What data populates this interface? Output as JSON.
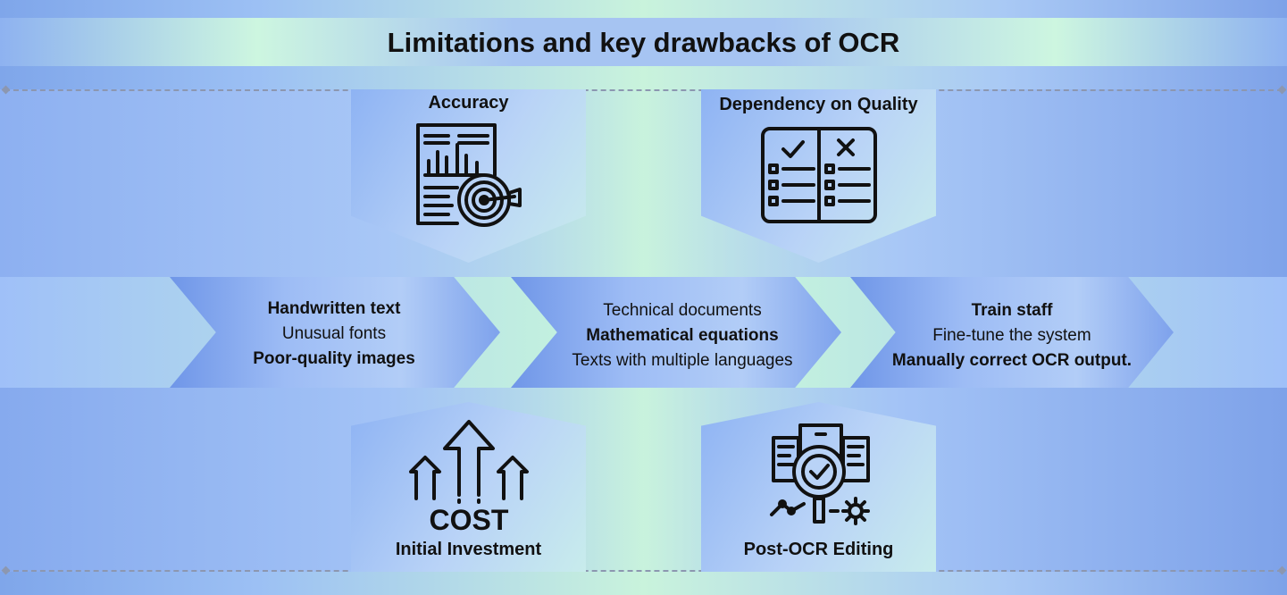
{
  "title": "Limitations and key drawbacks of OCR",
  "cards": {
    "accuracy": {
      "label": "Accuracy",
      "icon": "report-target-icon"
    },
    "dependency": {
      "label": "Dependency on Quality",
      "icon": "checklist-comparison-icon"
    },
    "investment": {
      "label": "Initial Investment",
      "icon": "cost-arrows-icon",
      "icon_text": "COST"
    },
    "post_ocr": {
      "label": "Post-OCR Editing",
      "icon": "document-magnifier-check-icon"
    }
  },
  "steps": [
    {
      "lines": [
        "Handwritten text",
        "Unusual fonts",
        "Poor-quality images"
      ],
      "bold": [
        true,
        false,
        true
      ]
    },
    {
      "lines": [
        "Technical documents",
        "Mathematical equations",
        "Texts with multiple languages"
      ],
      "bold": [
        false,
        true,
        false
      ]
    },
    {
      "lines": [
        "Train staff",
        "Fine-tune the system",
        "Manually correct OCR output."
      ],
      "bold": [
        true,
        false,
        true
      ]
    }
  ],
  "colors": {
    "accent": "#8eb3f3",
    "mint": "#c9f3dc",
    "ink": "#111111"
  }
}
